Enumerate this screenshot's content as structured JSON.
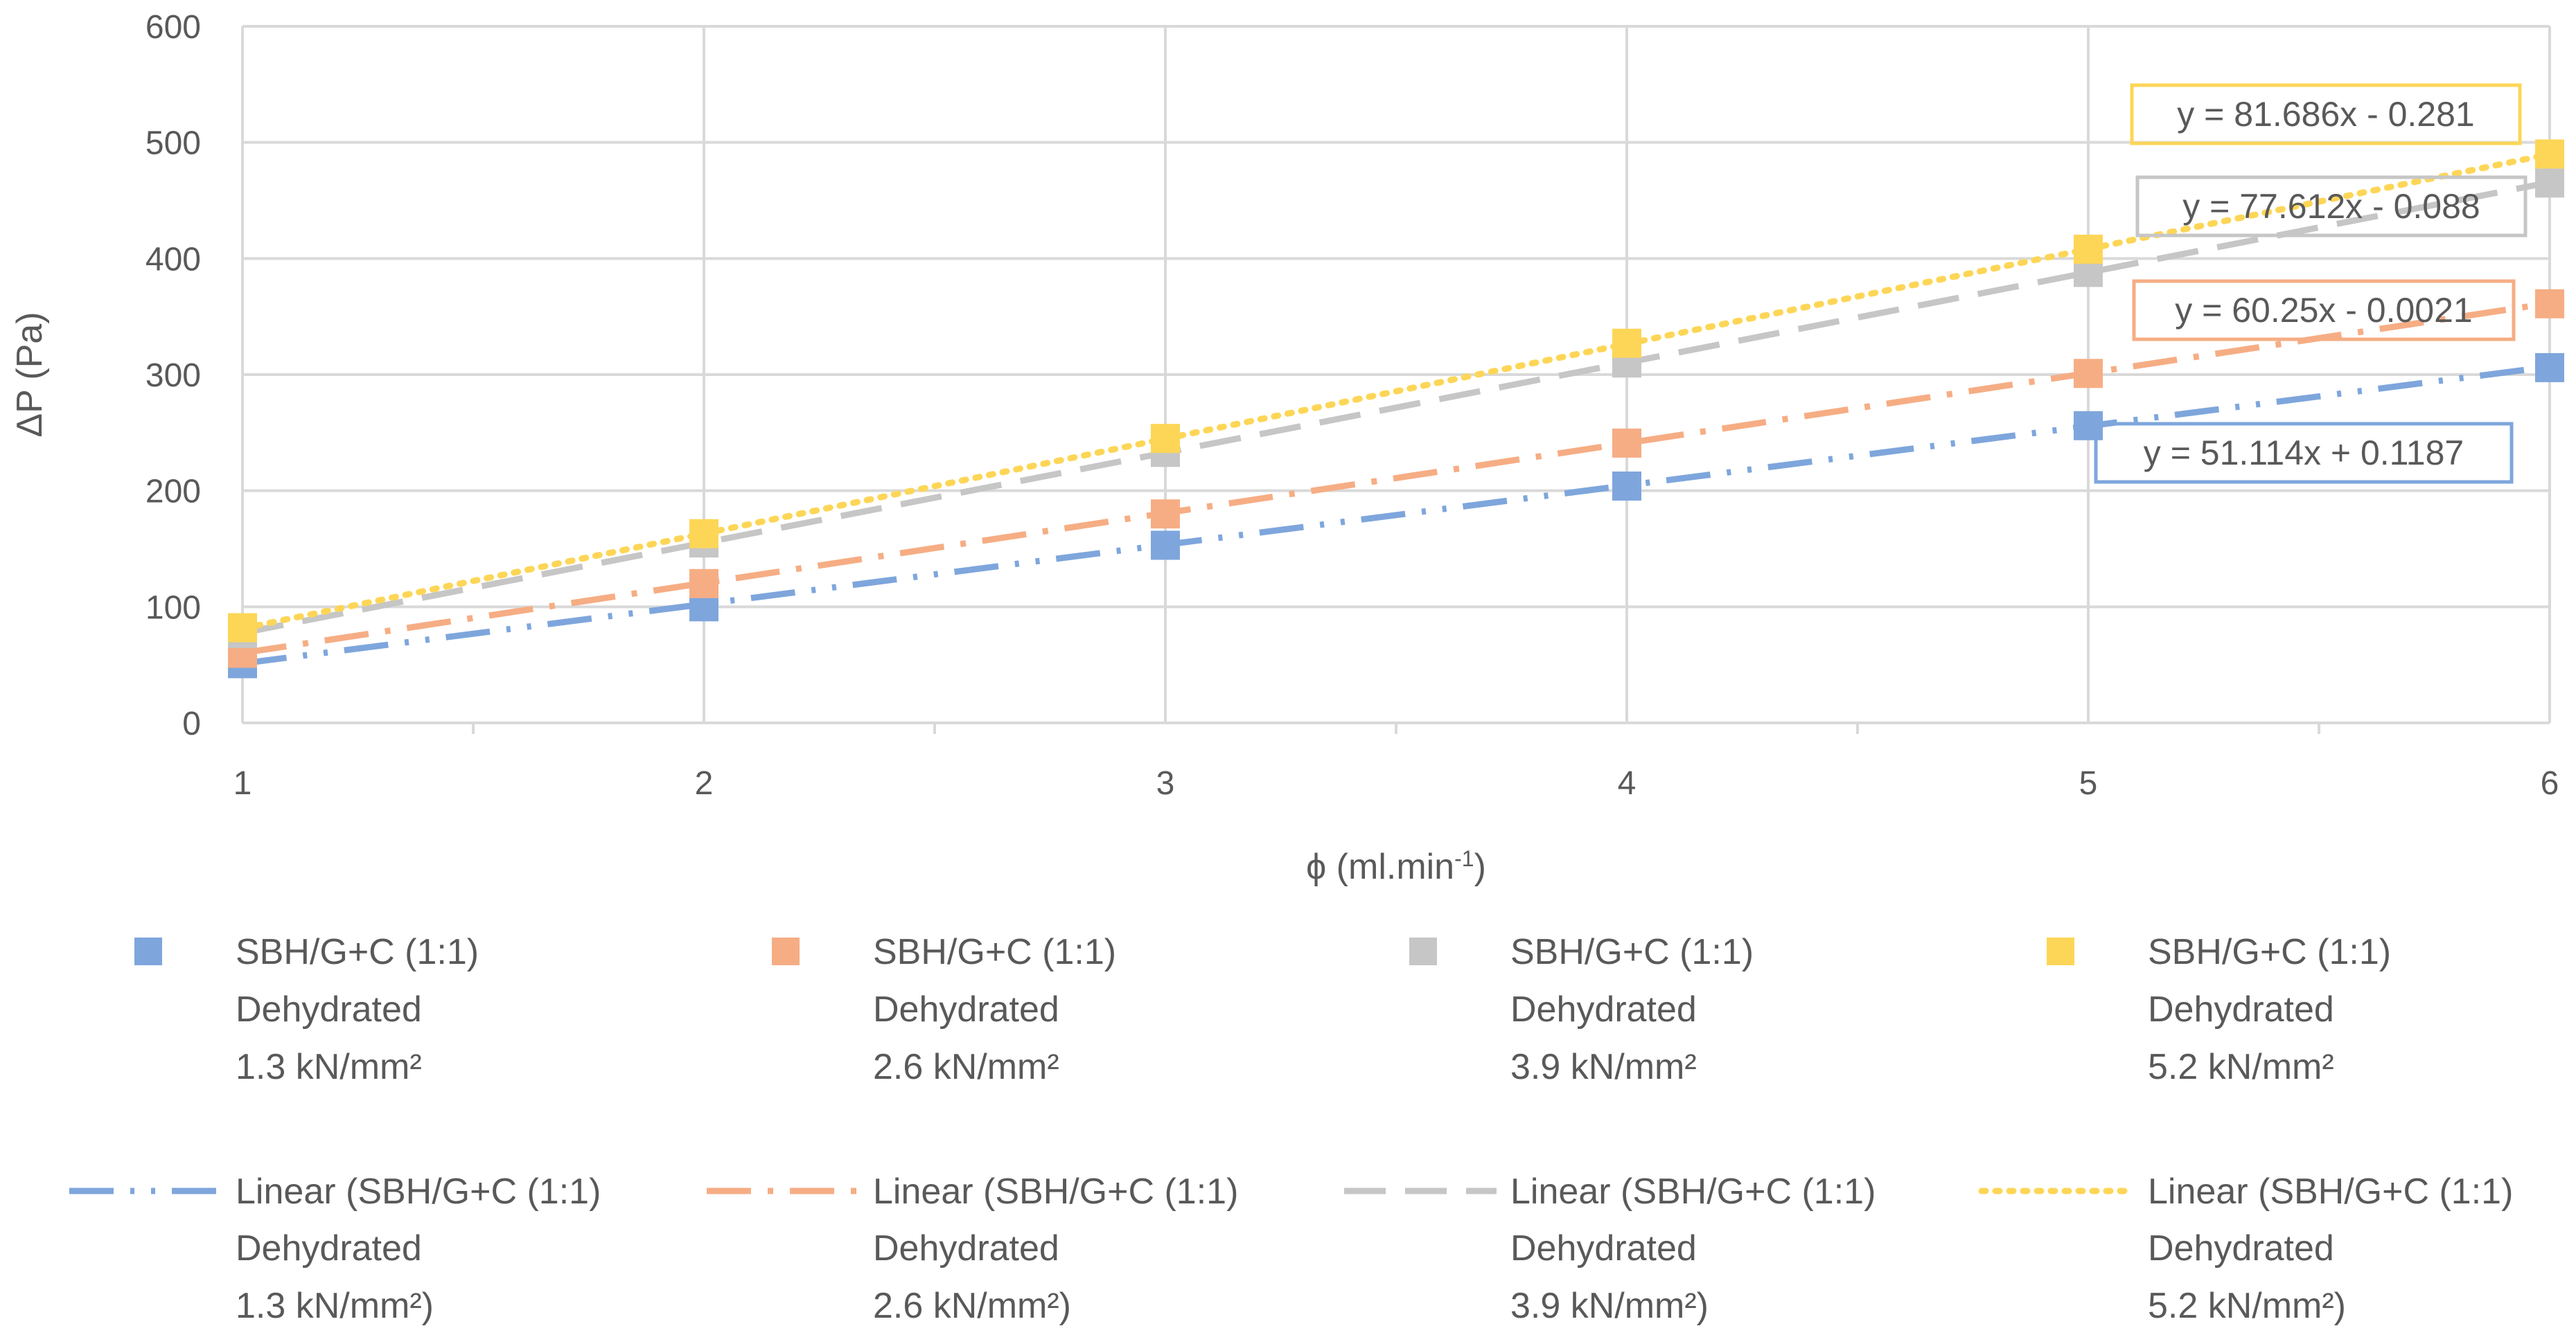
{
  "chart_data": {
    "type": "scatter",
    "xlabel": "ϕ (ml.min",
    "xlabel_sup": "-1",
    "xlabel_suffix": ")",
    "ylabel": "ΔP (Pa)",
    "xlim": [
      1,
      6
    ],
    "ylim": [
      0,
      600
    ],
    "xticks": [
      "1",
      "2",
      "3",
      "4",
      "5",
      "6"
    ],
    "yticks": [
      "0",
      "100",
      "200",
      "300",
      "400",
      "500",
      "600"
    ],
    "grid": true,
    "legend_position": "bottom",
    "series": [
      {
        "name": "SBH/G+C (1:1) Dehydrated 1.3 kN/mm²",
        "name_lines": [
          "SBH/G+C (1:1)",
          "Dehydrated",
          "1.3 kN/mm²"
        ],
        "trend_name_lines": [
          "Linear (SBH/G+C (1:1)",
          "Dehydrated",
          "1.3 kN/mm²)"
        ],
        "color": "#7ea6dc",
        "dash": "dash-dot-dot",
        "x": [
          1,
          2,
          3,
          4,
          5,
          6
        ],
        "y": [
          51,
          100,
          153,
          204,
          256,
          306
        ],
        "slope": 51.114,
        "intercept": 0.1187,
        "equation": "y = 51.114x + 0.1187"
      },
      {
        "name": "SBH/G+C (1:1) Dehydrated 2.6 kN/mm²",
        "name_lines": [
          "SBH/G+C (1:1)",
          "Dehydrated",
          "2.6 kN/mm²"
        ],
        "trend_name_lines": [
          "Linear (SBH/G+C (1:1)",
          "Dehydrated",
          "2.6 kN/mm²)"
        ],
        "color": "#f6ad84",
        "dash": "dash-dot",
        "x": [
          1,
          2,
          3,
          4,
          5,
          6
        ],
        "y": [
          60,
          120,
          180,
          241,
          301,
          361
        ],
        "slope": 60.25,
        "intercept": -0.0021,
        "equation": "y = 60.25x - 0.0021"
      },
      {
        "name": "SBH/G+C (1:1) Dehydrated 3.9 kN/mm²",
        "name_lines": [
          "SBH/G+C (1:1)",
          "Dehydrated",
          "3.9 kN/mm²"
        ],
        "trend_name_lines": [
          "Linear (SBH/G+C (1:1)",
          "Dehydrated",
          "3.9 kN/mm²)"
        ],
        "color": "#c6c6c6",
        "dash": "dash",
        "x": [
          1,
          2,
          3,
          4,
          5,
          6
        ],
        "y": [
          77,
          155,
          233,
          310,
          388,
          465
        ],
        "slope": 77.612,
        "intercept": -0.088,
        "equation": "y = 77.612x - 0.088"
      },
      {
        "name": "SBH/G+C (1:1) Dehydrated 5.2 kN/mm²",
        "name_lines": [
          "SBH/G+C (1:1)",
          "Dehydrated",
          "5.2 kN/mm²"
        ],
        "trend_name_lines": [
          "Linear (SBH/G+C (1:1)",
          "Dehydrated",
          "5.2 kN/mm²)"
        ],
        "color": "#fdd657",
        "dash": "dot",
        "x": [
          1,
          2,
          3,
          4,
          5,
          6
        ],
        "y": [
          82,
          163,
          245,
          327,
          408,
          490
        ],
        "slope": 81.686,
        "intercept": -0.281,
        "equation": "y = 81.686x - 0.281"
      }
    ]
  }
}
